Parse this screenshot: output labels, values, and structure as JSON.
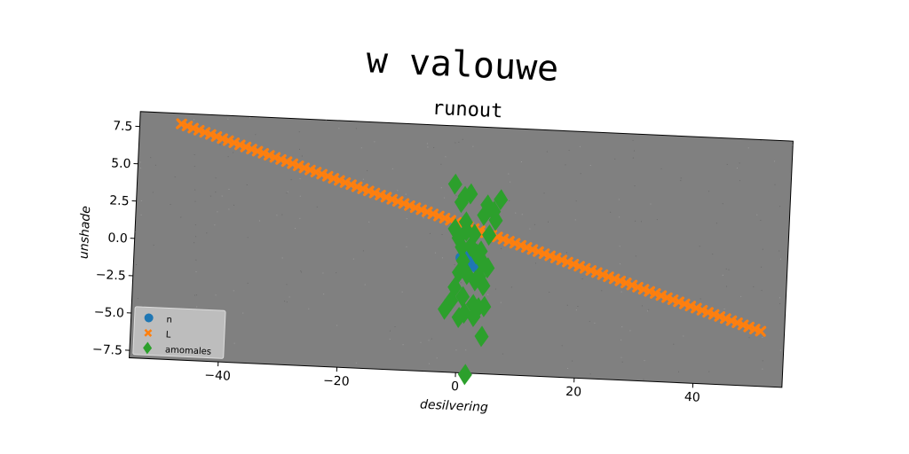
{
  "chart_data": {
    "type": "scatter",
    "title": "w valouwe",
    "subtitle": "runout",
    "xlabel": "desilvering",
    "ylabel": "unshade",
    "xlim": [
      -55,
      55
    ],
    "ylim": [
      -8,
      8.5
    ],
    "xticks": [
      -40,
      -20,
      0,
      20,
      40
    ],
    "xtick_labels": [
      "−40",
      "−20",
      "0",
      "20",
      "40"
    ],
    "yticks": [
      -7.5,
      -5.0,
      -2.5,
      0.0,
      2.5,
      5.0,
      7.5
    ],
    "ytick_labels": [
      "−7.5",
      "−5.0",
      "−2.5",
      "0.0",
      "2.5",
      "5.0",
      "7.5"
    ],
    "grid": false,
    "legend_position": "lower-left",
    "background": "#808080",
    "series": [
      {
        "name": "n",
        "marker": "circle",
        "color": "#1f77b4",
        "points": [
          [
            0,
            -0.3
          ],
          [
            0.7,
            -0.2
          ],
          [
            1.3,
            -0.4
          ],
          [
            1.8,
            -0.6
          ],
          [
            2.3,
            -0.8
          ],
          [
            2.6,
            -0.9
          ],
          [
            1.0,
            -0.7
          ],
          [
            1.6,
            -0.1
          ]
        ]
      },
      {
        "name": "L",
        "marker": "x",
        "color": "#ff7f0e",
        "line": {
          "x_start": -48,
          "x_end": 51,
          "slope": -0.1222,
          "intercept": 1.93,
          "points": 100
        }
      },
      {
        "name": "amomales",
        "marker": "diamond",
        "color": "#2ca02c",
        "points": [
          [
            -1.5,
            4.6
          ],
          [
            0.2,
            3.8
          ],
          [
            1.2,
            4.0
          ],
          [
            -0.3,
            3.4
          ],
          [
            6.3,
            3.7
          ],
          [
            4.1,
            3.3
          ],
          [
            5.2,
            2.9
          ],
          [
            3.6,
            2.6
          ],
          [
            5.6,
            2.3
          ],
          [
            0.6,
            2.1
          ],
          [
            -1.2,
            1.6
          ],
          [
            0.8,
            1.5
          ],
          [
            4.6,
            1.3
          ],
          [
            2.1,
            1.3
          ],
          [
            -0.5,
            1.0
          ],
          [
            1.6,
            0.5
          ],
          [
            0.1,
            0.4
          ],
          [
            3.3,
            0.2
          ],
          [
            2.6,
            0.0
          ],
          [
            0.4,
            -0.5
          ],
          [
            3.8,
            -0.6
          ],
          [
            4.6,
            -0.9
          ],
          [
            -0.2,
            -1.3
          ],
          [
            1.2,
            -1.4
          ],
          [
            3.2,
            -1.5
          ],
          [
            2.6,
            -1.8
          ],
          [
            4.0,
            -2.1
          ],
          [
            -0.8,
            -2.3
          ],
          [
            0.6,
            -2.9
          ],
          [
            -1.3,
            -3.2
          ],
          [
            2.4,
            -3.4
          ],
          [
            4.3,
            -3.5
          ],
          [
            3.3,
            -3.6
          ],
          [
            -2.3,
            -3.8
          ],
          [
            1.0,
            -4.0
          ],
          [
            0.1,
            -4.3
          ],
          [
            2.6,
            -4.2
          ],
          [
            4.1,
            -5.5
          ],
          [
            1.6,
            -8.1
          ]
        ]
      }
    ]
  }
}
